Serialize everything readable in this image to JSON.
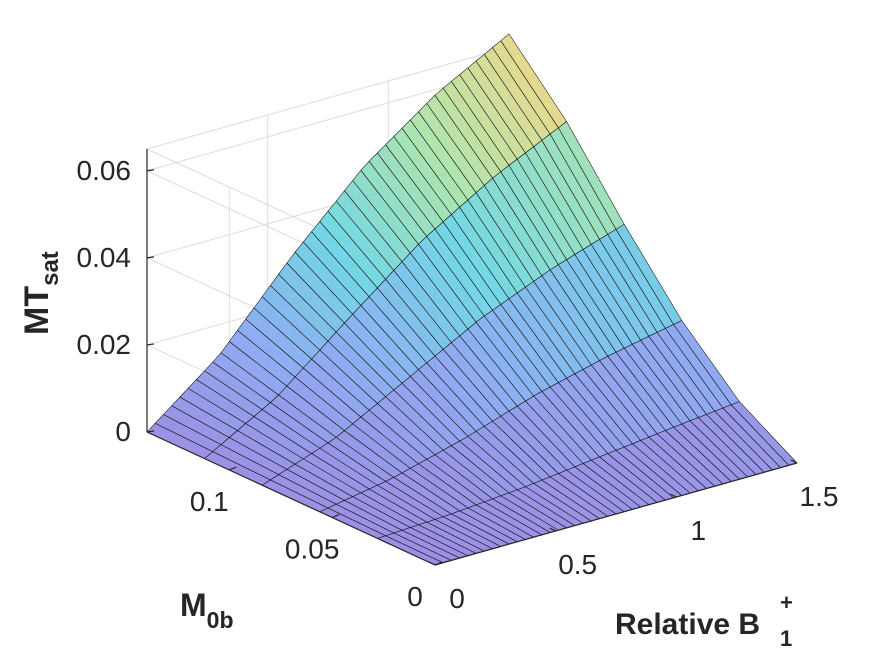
{
  "chart_data": {
    "type": "surface",
    "title": "",
    "zlabel": {
      "main": "MT",
      "sub": "sat"
    },
    "xlabel": {
      "main": "Relative B",
      "sub": "1",
      "sup": "+"
    },
    "ylabel": {
      "main": "M",
      "sub": "0b"
    },
    "xlim": [
      0,
      1.5
    ],
    "ylim": [
      0,
      0.14
    ],
    "zlim": [
      0,
      0.065
    ],
    "x_ticks": [
      "0",
      "0.5",
      "1",
      "1.5"
    ],
    "x_tick_values": [
      0,
      0.5,
      1,
      1.5
    ],
    "y_ticks": [
      "0",
      "0.05",
      "0.1"
    ],
    "y_tick_values": [
      0,
      0.05,
      0.1
    ],
    "z_ticks": [
      "0",
      "0.02",
      "0.04",
      "0.06"
    ],
    "z_tick_values": [
      0,
      0.02,
      0.04,
      0.06
    ],
    "grid": true,
    "colormap": [
      "#8a7de0",
      "#7aa0f0",
      "#5ad0e0",
      "#a0e0a0",
      "#f5d070"
    ],
    "surface_x": [
      0,
      0.3,
      0.6,
      0.9,
      1.2,
      1.5
    ],
    "surface_y": [
      0,
      0.028,
      0.056,
      0.084,
      0.112,
      0.14
    ],
    "surface_z": [
      [
        0,
        0,
        0,
        0,
        0,
        0
      ],
      [
        0,
        0.0008,
        0.0022,
        0.0042,
        0.0062,
        0.008
      ],
      [
        0,
        0.003,
        0.0075,
        0.013,
        0.0172,
        0.0205
      ],
      [
        0,
        0.006,
        0.015,
        0.024,
        0.031,
        0.0365
      ],
      [
        0,
        0.0095,
        0.023,
        0.036,
        0.046,
        0.054
      ],
      [
        0,
        0.013,
        0.031,
        0.047,
        0.059,
        0.068
      ]
    ]
  }
}
